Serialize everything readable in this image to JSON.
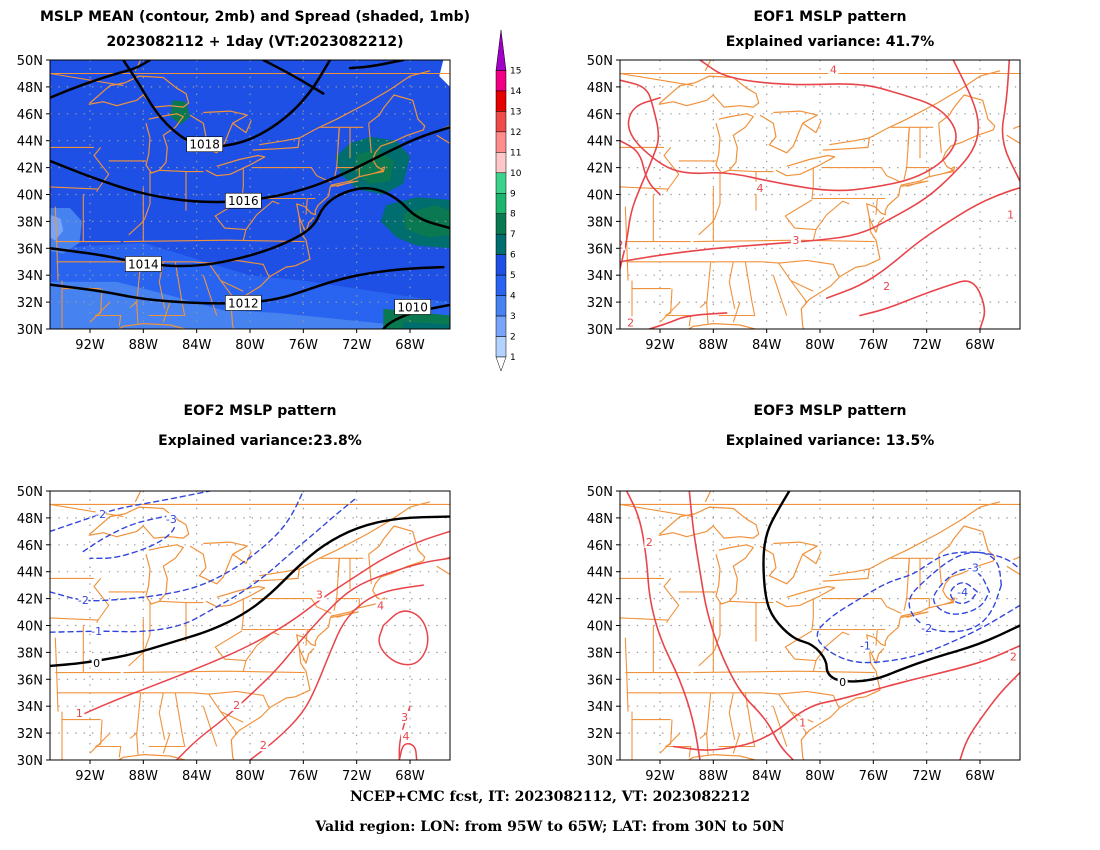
{
  "panels": {
    "p1": {
      "title1": "MSLP MEAN (contour, 2mb) and Spread (shaded, 1mb)",
      "title2": "2023082112 + 1day (VT:2023082212)",
      "contour_labels": [
        "1018",
        "1016",
        "1014",
        "1012",
        "1010"
      ]
    },
    "p2": {
      "title1": "EOF1 MSLP pattern",
      "title2": "Explained variance: 41.7%",
      "contour_labels": [
        "4",
        "4",
        "3",
        "2",
        "2",
        "1",
        "2"
      ]
    },
    "p3": {
      "title1": "EOF2 MSLP pattern",
      "title2": "Explained variance:23.8%",
      "contour_labels": [
        "-2",
        "-3",
        "-2",
        "-1",
        "0",
        "1",
        "2",
        "2",
        "3",
        "4",
        "3",
        "4"
      ]
    },
    "p4": {
      "title1": "EOF3 MSLP pattern",
      "title2": "Explained variance: 13.5%",
      "contour_labels": [
        "2",
        "-3",
        "-4",
        "-2",
        "-1",
        "0",
        "1",
        "2"
      ]
    }
  },
  "axes": {
    "lat_labels": [
      "50N",
      "48N",
      "46N",
      "44N",
      "42N",
      "40N",
      "38N",
      "36N",
      "34N",
      "32N",
      "30N"
    ],
    "lon_labels": [
      "92W",
      "88W",
      "84W",
      "80W",
      "76W",
      "72W",
      "68W"
    ]
  },
  "colorbar": {
    "labels": [
      "15",
      "14",
      "13",
      "12",
      "11",
      "10",
      "9",
      "8",
      "7",
      "6",
      "5",
      "4",
      "3",
      "2",
      "1"
    ],
    "colors": [
      "#a000c8",
      "#f00082",
      "#e60000",
      "#f04b4b",
      "#ff8c8c",
      "#ffc8c8",
      "#3cd28c",
      "#1eb46e",
      "#0a7850",
      "#006e6e",
      "#1e50e6",
      "#2864f0",
      "#4682f0",
      "#78a5fa",
      "#b4d2ff"
    ]
  },
  "colors": {
    "state_lines": "#f0923c",
    "positive_contour": "#e8454b",
    "negative_contour": "#3246dc",
    "zero_contour": "#000000"
  },
  "footer": {
    "line1": "NCEP+CMC fcst, IT: 2023082112, VT: 2023082212",
    "line2": "Valid region: LON: from 95W to 65W; LAT: from 30N to 50N"
  }
}
